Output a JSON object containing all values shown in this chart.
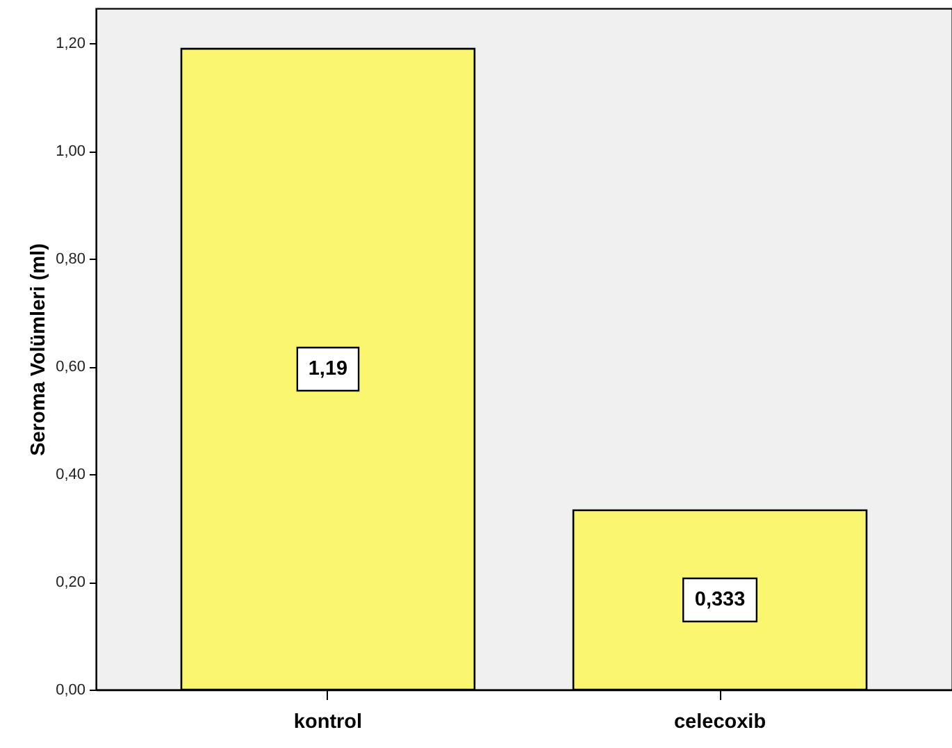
{
  "chart_data": {
    "type": "bar",
    "ylabel": "Seroma Volümleri (ml)",
    "categories": [
      "kontrol",
      "celecoxib"
    ],
    "values": [
      1.19,
      0.333
    ],
    "color": "#faf670",
    "value_labels": [
      "1,19",
      "0,333"
    ],
    "ylim": [
      0,
      1.265
    ],
    "yticks": [
      {
        "value": 0,
        "label": "0,00"
      },
      {
        "value": 0.2,
        "label": "0,20"
      },
      {
        "value": 0.4,
        "label": "0,40"
      },
      {
        "value": 0.6,
        "label": "0,60"
      },
      {
        "value": 0.8,
        "label": "0,80"
      },
      {
        "value": 1.0,
        "label": "1,00"
      },
      {
        "value": 1.2,
        "label": "1,20"
      }
    ]
  }
}
